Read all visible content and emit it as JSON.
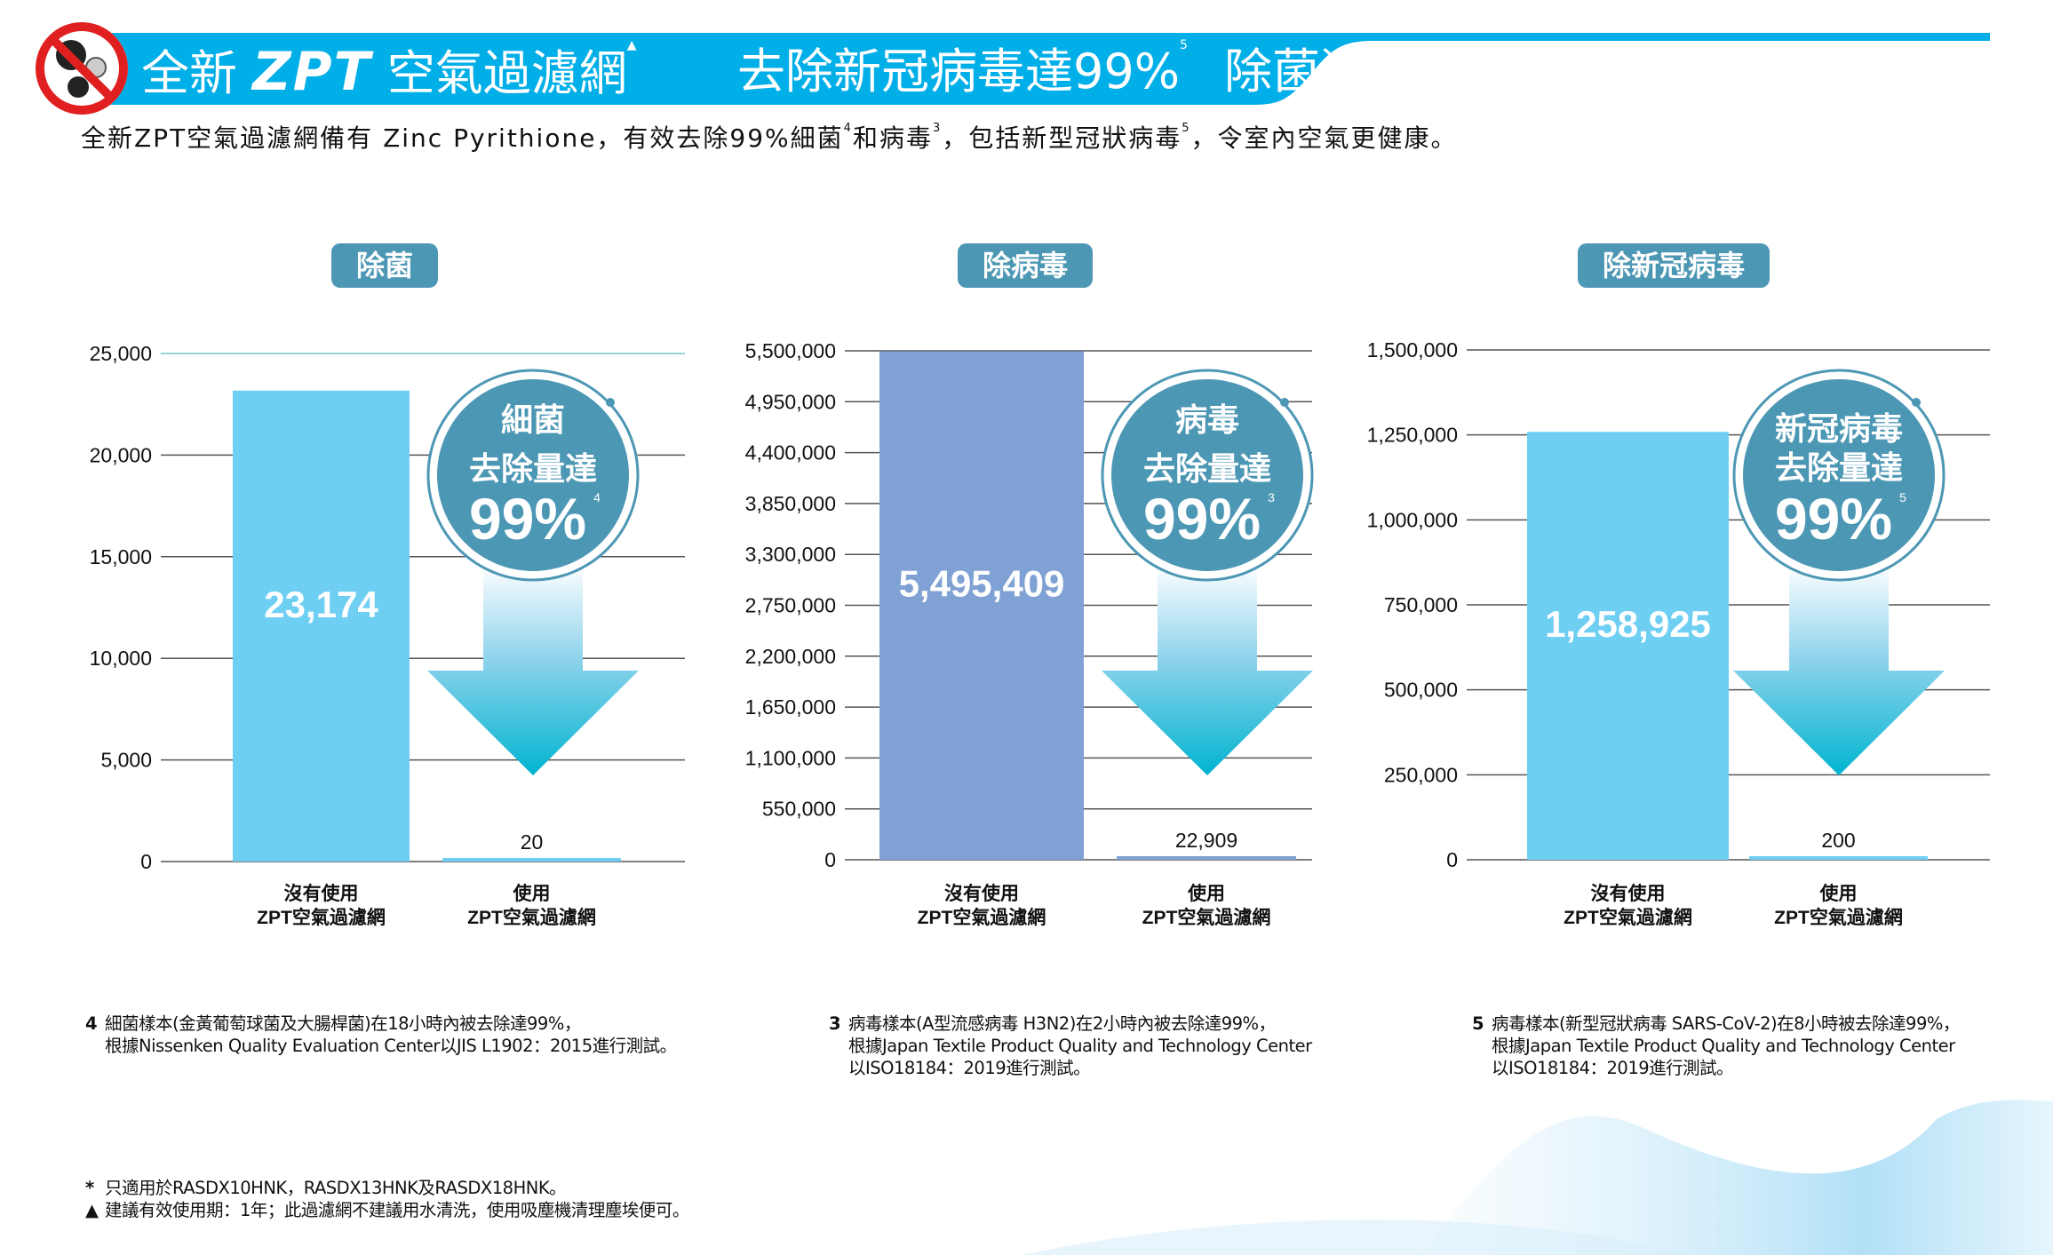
{
  "header": {
    "icon": "no-germs-icon",
    "title_prefix": "全新",
    "title_brand": "ZPT",
    "title_product": "空氣過濾網",
    "title_product_mark": "▲",
    "claim": "去除新冠病毒達99%",
    "claim_note": "5",
    "tagline": "除菌潔淨",
    "accent_color": "#00aee8"
  },
  "subtitle": {
    "part1": "全新ZPT空氣過濾網備有 Zinc Pyrithione，有效去除99%細菌",
    "note1": "4",
    "part2": "和病毒",
    "note2": "3",
    "part3": "，包括新型冠狀病毒",
    "note3": "5",
    "part4": "，令室內空氣更健康。"
  },
  "chart_data": [
    {
      "type": "bar",
      "title": "除菌",
      "categories": [
        "沒有使用\nZPT空氣過濾網",
        "使用\nZPT空氣過濾網"
      ],
      "values": [
        23174,
        20
      ],
      "value_labels": [
        "23,174",
        "20"
      ],
      "yticks": [
        "0",
        "5,000",
        "10,000",
        "15,000",
        "20,000",
        "25,000"
      ],
      "ylim": [
        0,
        25000
      ],
      "grid": true,
      "bar_color": "#6ecff3",
      "callout": {
        "line1": "細菌",
        "line2": "去除量達",
        "percent": "99%",
        "note": "4"
      }
    },
    {
      "type": "bar",
      "title": "除病毒",
      "categories": [
        "沒有使用\nZPT空氣過濾網",
        "使用\nZPT空氣過濾網"
      ],
      "values": [
        5495409,
        22909
      ],
      "value_labels": [
        "5,495,409",
        "22,909"
      ],
      "yticks": [
        "0",
        "550,000",
        "1,100,000",
        "1,650,000",
        "2,200,000",
        "2,750,000",
        "3,300,000",
        "3,850,000",
        "4,400,000",
        "4,950,000",
        "5,500,000"
      ],
      "ylim": [
        0,
        5500000
      ],
      "grid": true,
      "bar_color": "#7fa1d4",
      "callout": {
        "line1": "病毒",
        "line2": "去除量達",
        "percent": "99%",
        "note": "3"
      }
    },
    {
      "type": "bar",
      "title": "除新冠病毒",
      "categories": [
        "沒有使用\nZPT空氣過濾網",
        "使用\nZPT空氣過濾網"
      ],
      "values": [
        1258925,
        200
      ],
      "value_labels": [
        "1,258,925",
        "200"
      ],
      "yticks": [
        "0",
        "250,000",
        "500,000",
        "750,000",
        "1,000,000",
        "1,250,000",
        "1,500,000"
      ],
      "ylim": [
        0,
        1500000
      ],
      "grid": true,
      "bar_color": "#6ecff3",
      "callout": {
        "line1": "新冠病毒",
        "line2": "去除量達",
        "percent": "99%",
        "note": "5"
      }
    }
  ],
  "footnotes": [
    {
      "num": "4",
      "lines": [
        "細菌樣本(金黃葡萄球菌及大腸桿菌)在18小時內被去除達99%，",
        "根據Nissenken Quality Evaluation Center以JIS L1902：2015進行測試。"
      ]
    },
    {
      "num": "3",
      "lines": [
        "病毒樣本(A型流感病毒 H3N2)在2小時內被去除達99%，",
        "根據Japan Textile Product Quality and Technology Center",
        "以ISO18184：2019進行測試。"
      ]
    },
    {
      "num": "5",
      "lines": [
        "病毒樣本(新型冠狀病毒 SARS-CoV-2)在8小時被去除達99%，",
        "根據Japan Textile Product Quality and Technology Center",
        "以ISO18184：2019進行測試。"
      ]
    }
  ],
  "bottom_notes": [
    {
      "mark": "*",
      "text": "只適用於RASDX10HNK，RASDX13HNK及RASDX18HNK。"
    },
    {
      "mark": "▲",
      "text": "建議有效使用期：1年；此過濾網不建議用水清洗，使用吸塵機清理塵埃便可。"
    }
  ]
}
